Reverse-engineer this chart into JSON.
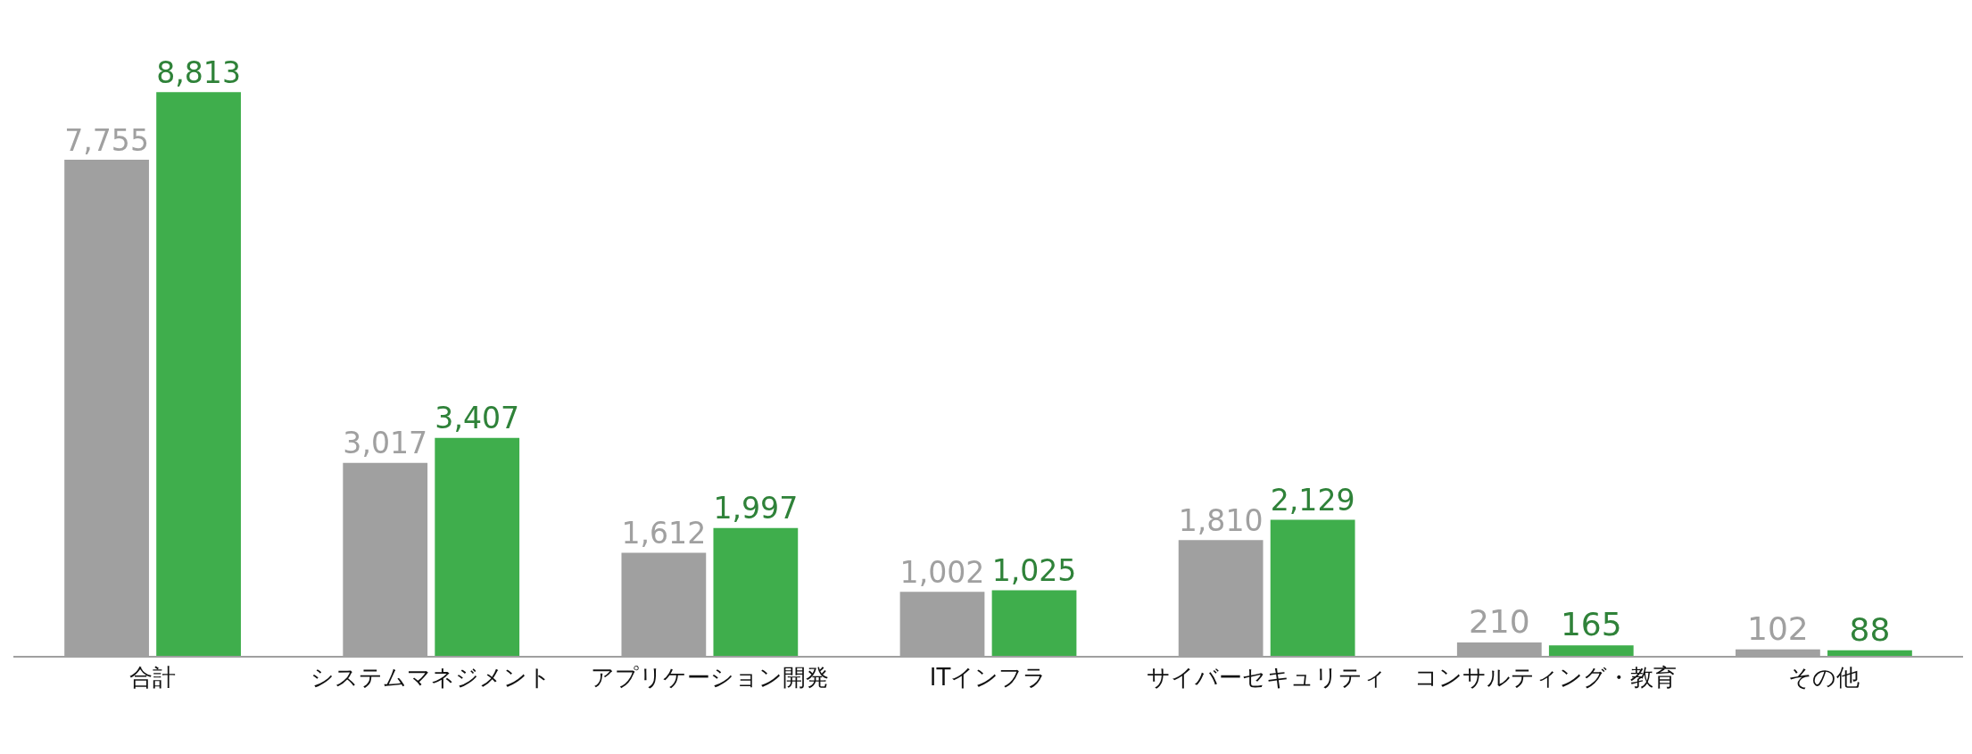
{
  "chart_data": {
    "type": "bar",
    "categories": [
      "合計",
      "システムマネジメント",
      "アプリケーション開発",
      "ITインフラ",
      "サイバーセキュリティ",
      "コンサルティング・教育",
      "その他"
    ],
    "series": [
      {
        "color": "#a0a0a0",
        "values": [
          7755,
          3017,
          1612,
          1002,
          1810,
          210,
          102
        ],
        "value_labels": [
          "7,755",
          "3,017",
          "1,612",
          "1,002",
          "1,810",
          "210",
          "102"
        ]
      },
      {
        "color": "#3fae4c",
        "values": [
          8813,
          3407,
          1997,
          1025,
          2129,
          165,
          88
        ],
        "value_labels": [
          "8,813",
          "3,407",
          "1,997",
          "1,025",
          "2,129",
          "165",
          "88"
        ]
      }
    ]
  }
}
